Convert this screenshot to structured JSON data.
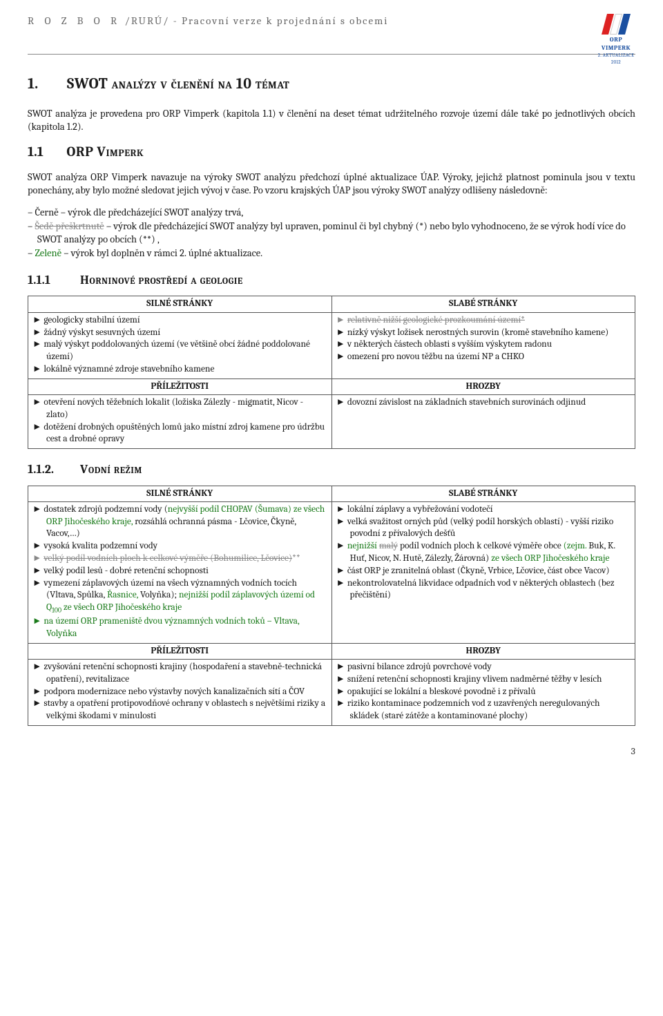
{
  "header": {
    "title_spaced": "R O Z B O R",
    "title_rest": "/RURÚ/ - Pracovní verze k projednání s obcemi",
    "logo": {
      "line1": "ORP VIMPERK",
      "line2": "2. AKTUALIZACE 2012"
    }
  },
  "h1": {
    "num": "1.",
    "text": "SWOT analýzy v členění na 10 témat"
  },
  "intro_p": "SWOT analýza je provedena pro ORP Vimperk (kapitola 1.1) v členění na deset témat udržitelného rozvoje území dále také po jednotlivých obcích (kapitola 1.2).",
  "h2": {
    "num": "1.1",
    "text": "ORP Vimperk"
  },
  "orp_para": {
    "lead": "SWOT analýza ORP Vimperk navazuje na výroky SWOT analýzu předchozí úplné aktualizace ÚAP. Výroky, jejichž platnost pominula jsou v textu ponechány, aby bylo možné sledovat jejich vývoj v čase. Po vzoru krajských ÚAP jsou výroky SWOT analýzy odlišeny následovně:",
    "dash1": "– Černě – výrok dle předcházející SWOT analýzy trvá,",
    "dash2_pre": "– ",
    "dash2_strike": "Šedě přeškrtnutě",
    "dash2_post": " – výrok dle předcházející SWOT analýzy byl upraven, pominul či byl chybný (*) nebo bylo vyhodnoceno, že se výrok hodí více do SWOT analýzy po obcích (**) ,",
    "dash3_pre": "– ",
    "dash3_green": "Zeleně",
    "dash3_post": " – výrok byl doplněn v rámci 2. úplné aktualizace."
  },
  "sec111": {
    "num": "1.1.1",
    "title": "Horninové prostředí a geologie",
    "headers": {
      "s": "SILNÉ STRÁNKY",
      "w": "SLABÉ STRÁNKY",
      "o": "PŘÍLEŽITOSTI",
      "t": "HROZBY"
    },
    "s": [
      {
        "t": "geologicky stabilní území"
      },
      {
        "t": "žádný výskyt sesuvných území"
      },
      {
        "t": "malý výskyt poddolovaných území (ve většině obcí žádné poddolované území)"
      },
      {
        "t": "lokálně významné zdroje stavebního kamene"
      }
    ],
    "w": [
      {
        "t": "relativně nižší geologické prozkoumání území*",
        "gray": true,
        "strike": true
      },
      {
        "t": "nízký výskyt ložisek nerostných surovin (kromě stavebního kamene)"
      },
      {
        "t": "v některých částech oblasti s vyšším výskytem radonu"
      },
      {
        "t": "omezení pro novou těžbu na území NP a CHKO"
      }
    ],
    "o": [
      {
        "t": "otevření nových těžebních lokalit (ložiska Zálezly - migmatit, Nicov - zlato)"
      },
      {
        "t": "dotěžení drobných opuštěných lomů jako místní zdroj kamene pro údržbu cest a drobné opravy"
      }
    ],
    "t": [
      {
        "t": "dovozní závislost na základních stavebních surovinách odjinud"
      }
    ]
  },
  "sec112": {
    "num": "1.1.2.",
    "title": "Vodní režim",
    "headers": {
      "s": "SILNÉ STRÁNKY",
      "w": "SLABÉ STRÁNKY",
      "o": "PŘÍLEŽITOSTI",
      "t": "HROZBY"
    },
    "s": [
      {
        "html": "dostatek zdrojů podzemní vody (<span class='green'>nejvyšší podíl CHOPAV (Šumava) ze všech ORP Jihočeského kraje,</span> rozsáhlá ochranná pásma - Lčovice, Čkyně, Vacov,…)"
      },
      {
        "t": "vysoká kvalita podzemní vody"
      },
      {
        "html": "<span class='strike'>velký podíl vodních ploch k celkové výměře (Bohumilice, Lčovice)</span>**",
        "gray": true
      },
      {
        "t": "velký podíl lesů - dobré retenční schopnosti"
      },
      {
        "html": "vymezení záplavových území na všech významných vodních tocích (Vltava, Spůlka, <span class='green'>Řasnice,</span> Volyňka); <span class='green'>nejnižší podíl záplavových území od Q<span class='sub100'>100</span> ze všech ORP Jihočeského kraje</span>"
      },
      {
        "html": "<span class='green'>na území ORP prameniště dvou významných vodních toků – Vltava, Volyňka</span>",
        "greenbul": true
      }
    ],
    "w": [
      {
        "t": "lokální záplavy a vybřežování vodotečí"
      },
      {
        "t": "velká svažitost orných půd (velký podíl horských oblastí) - vyšší riziko povodní z přívalových dešťů"
      },
      {
        "html": "<span class='green'>nejnižší</span> <span class='strike'>malý</span> podíl vodních ploch k celkové výměře obce <span class='green'>(zejm.</span> Buk, K. Huť, Nicov, N. Hutě, Zálezly, Žárovná) <span class='green'>ze všech ORP Jihočeského kraje</span>"
      },
      {
        "t": "část ORP je zranitelná oblast (Čkyně, Vrbice, Lčovice, část obce Vacov)"
      },
      {
        "t": "nekontrolovatelná likvidace odpadních vod v některých oblastech (bez přečištění)"
      }
    ],
    "o": [
      {
        "t": "zvyšování retenční schopnosti krajiny (hospodaření a stavebně-technická opatření), revitalizace"
      },
      {
        "t": "podpora modernizace nebo výstavby nových kanalizačních sítí a ČOV"
      },
      {
        "t": "stavby a opatření protipovodňové ochrany v oblastech s největšími riziky a velkými škodami v minulosti"
      }
    ],
    "t": [
      {
        "t": "pasivní bilance zdrojů povrchové vody"
      },
      {
        "t": "snížení retenční schopnosti krajiny vlivem nadměrné těžby v lesích"
      },
      {
        "t": "opakující se lokální a bleskové povodně i z přívalů"
      },
      {
        "t": "riziko kontaminace podzemních vod z uzavřených neregulovaných skládek (staré zátěže a kontaminované plochy)"
      }
    ]
  },
  "pagenum": "3",
  "colors": {
    "text": "#1a1a1a",
    "header_gray": "#666666",
    "green": "#1a7a1a",
    "strike_gray": "#888888",
    "border": "#555555"
  }
}
